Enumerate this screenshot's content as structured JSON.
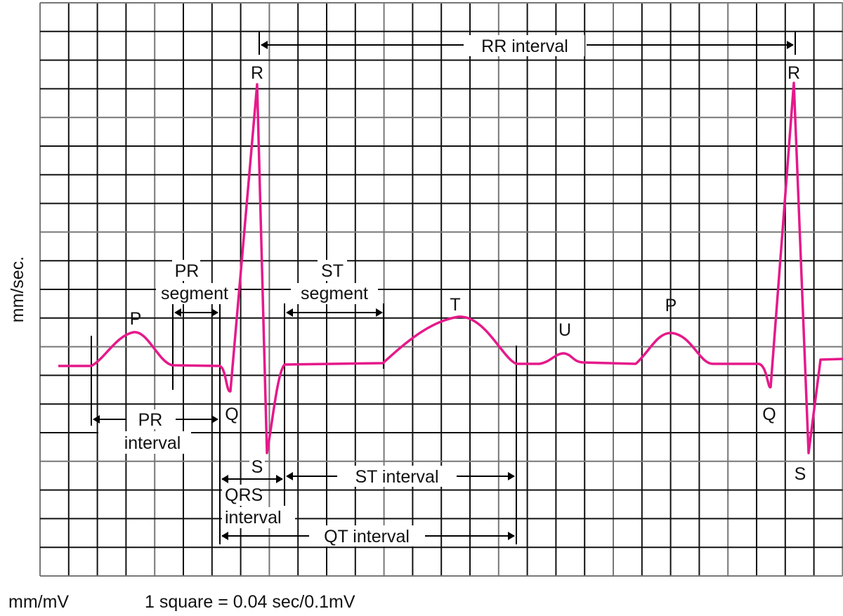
{
  "colors": {
    "trace": "#e5198a",
    "grid": "#111111",
    "annotation": "#000000"
  },
  "grid": {
    "columns": 28,
    "rows": 20,
    "square_value": "0.04 sec / 0.1 mV"
  },
  "labels": {
    "rr_interval": "RR interval",
    "r1": "R",
    "r2": "R",
    "p1": "P",
    "p2": "P",
    "q1": "Q",
    "q2": "Q",
    "s1": "S",
    "s2": "S",
    "t": "T",
    "u": "U",
    "pr_segment_1": "PR",
    "pr_segment_2": "segment",
    "st_segment_1": "ST",
    "st_segment_2": "segment",
    "pr_interval_1": "PR",
    "pr_interval_2": "interval",
    "qrs_interval_1": "QRS",
    "qrs_interval_2": "interval",
    "st_interval": "ST interval",
    "qt_interval": "QT interval",
    "y_axis": "mm/sec.",
    "footer_unit": "mm/mV",
    "footer_scale": "1 square = 0.04 sec/0.1mV"
  }
}
